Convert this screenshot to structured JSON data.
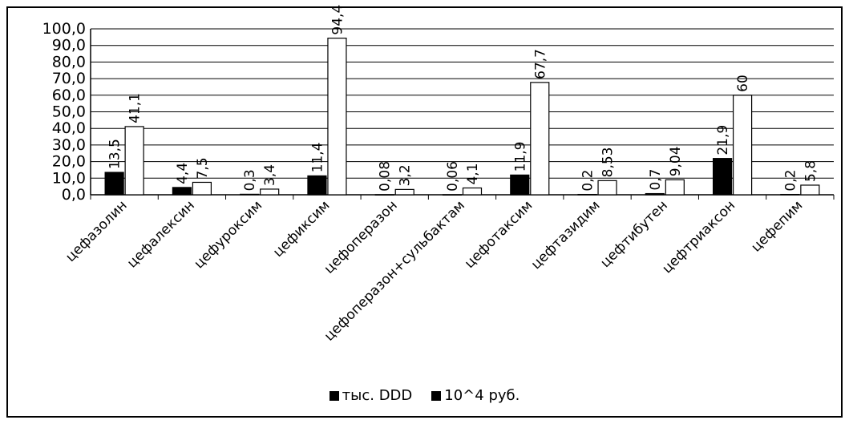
{
  "chart_data": {
    "type": "bar",
    "categories": [
      "цефазолин",
      "цефалексин",
      "цефуроксим",
      "цефиксим",
      "цефоперазон",
      "цефоперазон+сульбактам",
      "цефотаксим",
      "цефтазидим",
      "цефтибутен",
      "цефтриаксон",
      "цефепим"
    ],
    "series": [
      {
        "name": "тыс. DDD",
        "values": [
          13.5,
          4.4,
          0.3,
          11.4,
          0.08,
          0.06,
          11.9,
          0.2,
          0.7,
          21.9,
          0.2
        ],
        "labels": [
          "13,5",
          "4,4",
          "0,3",
          "11,4",
          "0,08",
          "0,06",
          "11,9",
          "0,2",
          "0,7",
          "21,9",
          "0,2"
        ],
        "color": "#000000"
      },
      {
        "name": "10^4 руб.",
        "values": [
          41.1,
          7.5,
          3.4,
          94.4,
          3.2,
          4.1,
          67.7,
          8.53,
          9.04,
          60,
          5.8
        ],
        "labels": [
          "41,1",
          "7,5",
          "3,4",
          "94,4",
          "3,2",
          "4,1",
          "67,7",
          "8,53",
          "9,04",
          "60",
          "5,8"
        ],
        "color": "#ffffff"
      }
    ],
    "ylim": [
      0,
      100
    ],
    "yticks": [
      "0,0",
      "10,0",
      "20,0",
      "30,0",
      "40,0",
      "50,0",
      "60,0",
      "70,0",
      "80,0",
      "90,0",
      "100,0"
    ],
    "grid": true,
    "legend": "bottom"
  },
  "legend": {
    "items": [
      "тыс. DDD",
      "10^4 руб."
    ]
  }
}
